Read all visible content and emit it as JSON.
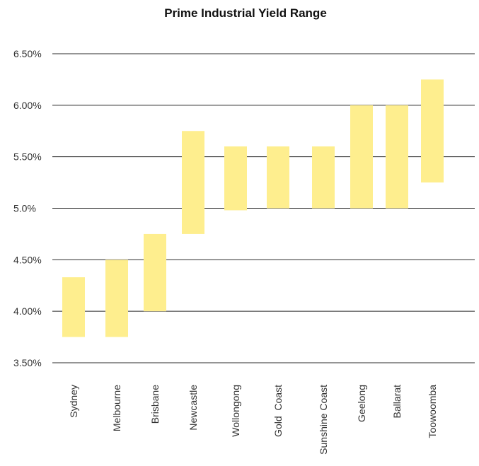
{
  "chart_data": {
    "type": "bar",
    "subtype": "floating-range",
    "title": "Prime Industrial Yield Range",
    "xlabel": "",
    "ylabel": "",
    "ylim": [
      3.5,
      6.5
    ],
    "yticks": [
      3.5,
      4.0,
      4.5,
      5.0,
      5.5,
      6.0,
      6.5
    ],
    "ytick_labels": [
      "3.50%",
      "4.00%",
      "4.50%",
      "5.0%",
      "5.50%",
      "6.00%",
      "6.50%"
    ],
    "grid": true,
    "legend": "none",
    "bar_color": "#FEEE8E",
    "categories": [
      "Sydney",
      "Melbourne",
      "Brisbane",
      "Newcastle",
      "Wollongong",
      "Gold  Coast",
      "Sunshine Coast",
      "Geelong",
      "Ballarat",
      "Toowoomba"
    ],
    "ranges": [
      {
        "low": 3.75,
        "high": 4.33
      },
      {
        "low": 3.75,
        "high": 4.5
      },
      {
        "low": 4.0,
        "high": 4.75
      },
      {
        "low": 4.75,
        "high": 5.75
      },
      {
        "low": 4.98,
        "high": 5.6
      },
      {
        "low": 5.0,
        "high": 5.6
      },
      {
        "low": 5.0,
        "high": 5.6
      },
      {
        "low": 5.0,
        "high": 6.0
      },
      {
        "low": 5.0,
        "high": 6.0
      },
      {
        "low": 5.25,
        "high": 6.25
      }
    ]
  }
}
